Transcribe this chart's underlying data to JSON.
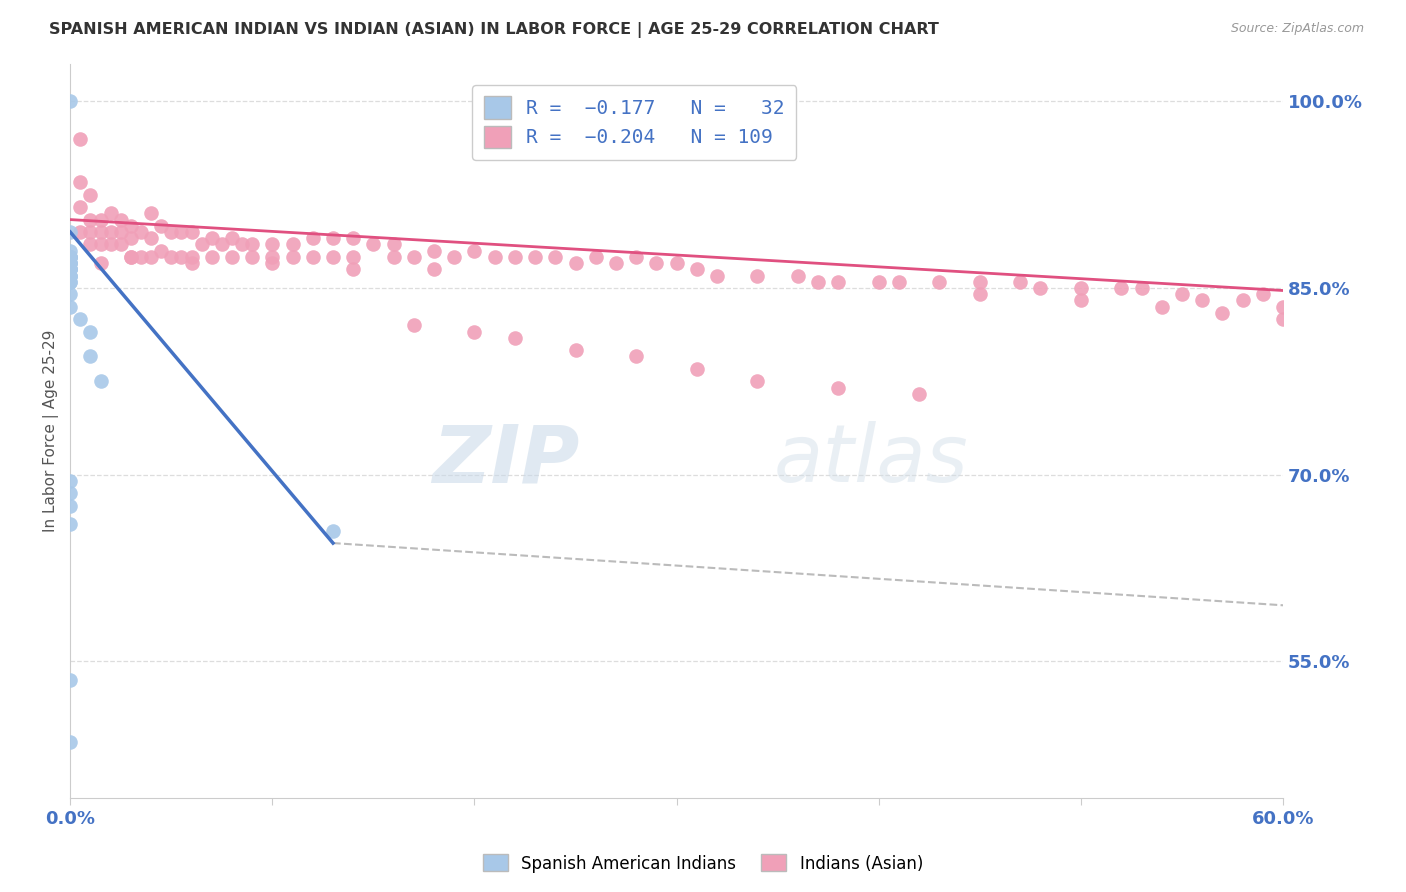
{
  "title": "SPANISH AMERICAN INDIAN VS INDIAN (ASIAN) IN LABOR FORCE | AGE 25-29 CORRELATION CHART",
  "source": "Source: ZipAtlas.com",
  "ylabel": "In Labor Force | Age 25-29",
  "ytick_labels": [
    "100.0%",
    "85.0%",
    "70.0%",
    "55.0%"
  ],
  "ytick_values": [
    1.0,
    0.85,
    0.7,
    0.55
  ],
  "xlim": [
    0.0,
    0.6
  ],
  "ylim": [
    0.44,
    1.03
  ],
  "watermark_part1": "ZIP",
  "watermark_part2": "atlas",
  "blue_color": "#A8C8E8",
  "pink_color": "#F0A0B8",
  "blue_line_color": "#4472C4",
  "pink_line_color": "#E05080",
  "dashed_line_color": "#BBBBBB",
  "blue_scatter_x": [
    0.0,
    0.0,
    0.0,
    0.0,
    0.0,
    0.0,
    0.0,
    0.0,
    0.0,
    0.0,
    0.0,
    0.0,
    0.0,
    0.0,
    0.0,
    0.0,
    0.0,
    0.0,
    0.005,
    0.01,
    0.01,
    0.015,
    0.0,
    0.0,
    0.0,
    0.0,
    0.13,
    0.0,
    0.0,
    0.0,
    0.0,
    0.0
  ],
  "blue_scatter_y": [
    1.0,
    0.895,
    0.88,
    0.875,
    0.875,
    0.875,
    0.87,
    0.87,
    0.87,
    0.865,
    0.865,
    0.865,
    0.86,
    0.86,
    0.855,
    0.855,
    0.845,
    0.835,
    0.825,
    0.815,
    0.795,
    0.775,
    0.695,
    0.685,
    0.675,
    0.66,
    0.655,
    0.535,
    0.485,
    0.875,
    0.865,
    0.86
  ],
  "pink_scatter_x": [
    0.005,
    0.005,
    0.005,
    0.01,
    0.01,
    0.01,
    0.01,
    0.015,
    0.015,
    0.015,
    0.02,
    0.02,
    0.02,
    0.025,
    0.025,
    0.025,
    0.03,
    0.03,
    0.03,
    0.035,
    0.035,
    0.04,
    0.04,
    0.04,
    0.045,
    0.045,
    0.05,
    0.05,
    0.055,
    0.055,
    0.06,
    0.06,
    0.065,
    0.07,
    0.07,
    0.075,
    0.08,
    0.08,
    0.085,
    0.09,
    0.09,
    0.1,
    0.1,
    0.11,
    0.11,
    0.12,
    0.12,
    0.13,
    0.13,
    0.14,
    0.14,
    0.15,
    0.16,
    0.16,
    0.17,
    0.18,
    0.19,
    0.2,
    0.21,
    0.22,
    0.23,
    0.24,
    0.25,
    0.26,
    0.27,
    0.28,
    0.29,
    0.3,
    0.31,
    0.32,
    0.34,
    0.36,
    0.37,
    0.38,
    0.4,
    0.41,
    0.43,
    0.45,
    0.47,
    0.48,
    0.5,
    0.52,
    0.53,
    0.55,
    0.56,
    0.58,
    0.59,
    0.6,
    0.005,
    0.17,
    0.2,
    0.22,
    0.25,
    0.28,
    0.31,
    0.34,
    0.38,
    0.42,
    0.45,
    0.5,
    0.54,
    0.57,
    0.6,
    0.015,
    0.03,
    0.06,
    0.1,
    0.14,
    0.18
  ],
  "pink_scatter_y": [
    0.97,
    0.935,
    0.915,
    0.925,
    0.905,
    0.895,
    0.885,
    0.905,
    0.895,
    0.885,
    0.91,
    0.895,
    0.885,
    0.905,
    0.895,
    0.885,
    0.9,
    0.89,
    0.875,
    0.895,
    0.875,
    0.91,
    0.89,
    0.875,
    0.9,
    0.88,
    0.895,
    0.875,
    0.895,
    0.875,
    0.895,
    0.875,
    0.885,
    0.89,
    0.875,
    0.885,
    0.89,
    0.875,
    0.885,
    0.885,
    0.875,
    0.885,
    0.875,
    0.885,
    0.875,
    0.89,
    0.875,
    0.89,
    0.875,
    0.89,
    0.875,
    0.885,
    0.885,
    0.875,
    0.875,
    0.88,
    0.875,
    0.88,
    0.875,
    0.875,
    0.875,
    0.875,
    0.87,
    0.875,
    0.87,
    0.875,
    0.87,
    0.87,
    0.865,
    0.86,
    0.86,
    0.86,
    0.855,
    0.855,
    0.855,
    0.855,
    0.855,
    0.855,
    0.855,
    0.85,
    0.85,
    0.85,
    0.85,
    0.845,
    0.84,
    0.84,
    0.845,
    0.835,
    0.895,
    0.82,
    0.815,
    0.81,
    0.8,
    0.795,
    0.785,
    0.775,
    0.77,
    0.765,
    0.845,
    0.84,
    0.835,
    0.83,
    0.825,
    0.87,
    0.875,
    0.87,
    0.87,
    0.865,
    0.865
  ],
  "blue_trend_x": [
    0.0,
    0.13
  ],
  "blue_trend_y": [
    0.895,
    0.645
  ],
  "pink_trend_x": [
    0.0,
    0.6
  ],
  "pink_trend_y": [
    0.905,
    0.848
  ],
  "dashed_trend_x": [
    0.13,
    0.6
  ],
  "dashed_trend_y": [
    0.645,
    0.595
  ],
  "background_color": "#FFFFFF",
  "grid_color": "#DDDDDD"
}
